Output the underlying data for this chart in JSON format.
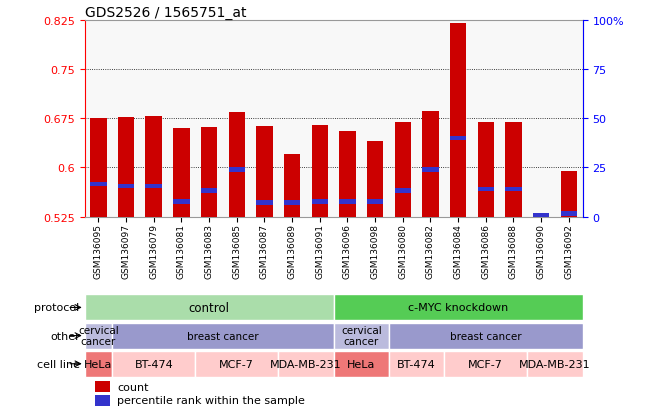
{
  "title": "GDS2526 / 1565751_at",
  "samples": [
    "GSM136095",
    "GSM136097",
    "GSM136079",
    "GSM136081",
    "GSM136083",
    "GSM136085",
    "GSM136087",
    "GSM136089",
    "GSM136091",
    "GSM136096",
    "GSM136098",
    "GSM136080",
    "GSM136082",
    "GSM136084",
    "GSM136086",
    "GSM136088",
    "GSM136090",
    "GSM136092"
  ],
  "bar_heights": [
    0.675,
    0.677,
    0.678,
    0.66,
    0.662,
    0.685,
    0.663,
    0.62,
    0.665,
    0.655,
    0.64,
    0.67,
    0.686,
    0.82,
    0.67,
    0.67,
    0.527,
    0.595
  ],
  "blue_vals": [
    0.575,
    0.572,
    0.572,
    0.548,
    0.565,
    0.597,
    0.547,
    0.547,
    0.548,
    0.548,
    0.548,
    0.565,
    0.597,
    0.645,
    0.567,
    0.567,
    0.527,
    0.53
  ],
  "ylim_left": [
    0.525,
    0.825
  ],
  "yticks_left": [
    0.525,
    0.6,
    0.675,
    0.75,
    0.825
  ],
  "yticks_right": [
    0,
    25,
    50,
    75,
    100
  ],
  "bar_color": "#cc0000",
  "blue_color": "#3333cc",
  "protocol_control_color": "#aaddaa",
  "protocol_cmyc_color": "#55cc55",
  "other_cervical_color": "#bbbbdd",
  "other_breast_color": "#9999cc",
  "cell_hela_color": "#ee7777",
  "cell_other_color": "#ffcccc",
  "protocol_row": [
    {
      "label": "control",
      "start": 0,
      "end": 9,
      "color_key": "protocol_control_color"
    },
    {
      "label": "c-MYC knockdown",
      "start": 9,
      "end": 18,
      "color_key": "protocol_cmyc_color"
    }
  ],
  "other_row": [
    {
      "label": "cervical\ncancer",
      "start": 0,
      "end": 1,
      "color_key": "other_cervical_color"
    },
    {
      "label": "breast cancer",
      "start": 1,
      "end": 9,
      "color_key": "other_breast_color"
    },
    {
      "label": "cervical\ncancer",
      "start": 9,
      "end": 11,
      "color_key": "other_cervical_color"
    },
    {
      "label": "breast cancer",
      "start": 11,
      "end": 18,
      "color_key": "other_breast_color"
    }
  ],
  "cell_line_row": [
    {
      "label": "HeLa",
      "start": 0,
      "end": 1,
      "color_key": "cell_hela_color"
    },
    {
      "label": "BT-474",
      "start": 1,
      "end": 4,
      "color_key": "cell_other_color"
    },
    {
      "label": "MCF-7",
      "start": 4,
      "end": 7,
      "color_key": "cell_other_color"
    },
    {
      "label": "MDA-MB-231",
      "start": 7,
      "end": 9,
      "color_key": "cell_other_color"
    },
    {
      "label": "HeLa",
      "start": 9,
      "end": 11,
      "color_key": "cell_hela_color"
    },
    {
      "label": "BT-474",
      "start": 11,
      "end": 13,
      "color_key": "cell_other_color"
    },
    {
      "label": "MCF-7",
      "start": 13,
      "end": 16,
      "color_key": "cell_other_color"
    },
    {
      "label": "MDA-MB-231",
      "start": 16,
      "end": 18,
      "color_key": "cell_other_color"
    }
  ],
  "row_labels": [
    "protocol",
    "other",
    "cell line"
  ],
  "legend_labels": [
    "count",
    "percentile rank within the sample"
  ]
}
